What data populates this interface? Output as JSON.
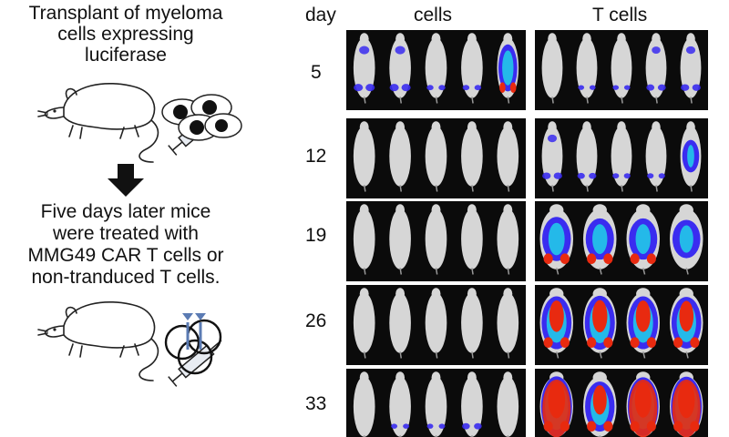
{
  "procedure": {
    "step1_lines": [
      "Transplant of myeloma",
      "cells expressing",
      "luciferase"
    ],
    "step2_lines": [
      "Five days later mice",
      "were treated with",
      "MMG49 CAR T cells or",
      "non-tranduced T cells."
    ]
  },
  "imaging": {
    "day_header": "day",
    "columns": [
      {
        "label": "cells"
      },
      {
        "label": "T cells"
      }
    ],
    "days": [
      "5",
      "12",
      "19",
      "26",
      "33"
    ]
  },
  "icons": {
    "mouse": "mouse-illustration",
    "syringe": "syringe-icon",
    "arrow": "down-arrow-icon"
  },
  "colors": {
    "panel_background": "#0b0b0b",
    "mouse_body": "#d6d6d6",
    "signal_low": "#3a2cf0",
    "signal_mid": "#22c9e8",
    "signal_high": "#e82a10",
    "car_t_marker": "#5b7bb3"
  },
  "bioluminescence": {
    "left": [
      [
        0.35,
        0.35,
        0.1,
        0.1,
        0.7
      ],
      [
        0,
        0,
        0,
        0,
        0
      ],
      [
        0,
        0,
        0,
        0,
        0
      ],
      [
        0,
        0,
        0,
        0,
        0
      ],
      [
        0,
        0.05,
        0.05,
        0.2,
        0
      ]
    ],
    "right": [
      [
        0,
        0.05,
        0.05,
        0.25,
        0.3
      ],
      [
        0.3,
        0.2,
        0.1,
        0.1,
        0.45
      ],
      [
        0.65,
        0.6,
        0.6,
        0.55
      ],
      [
        0.8,
        0.82,
        0.8,
        0.78
      ],
      [
        0.93,
        0.75,
        0.9,
        0.92
      ]
    ]
  }
}
